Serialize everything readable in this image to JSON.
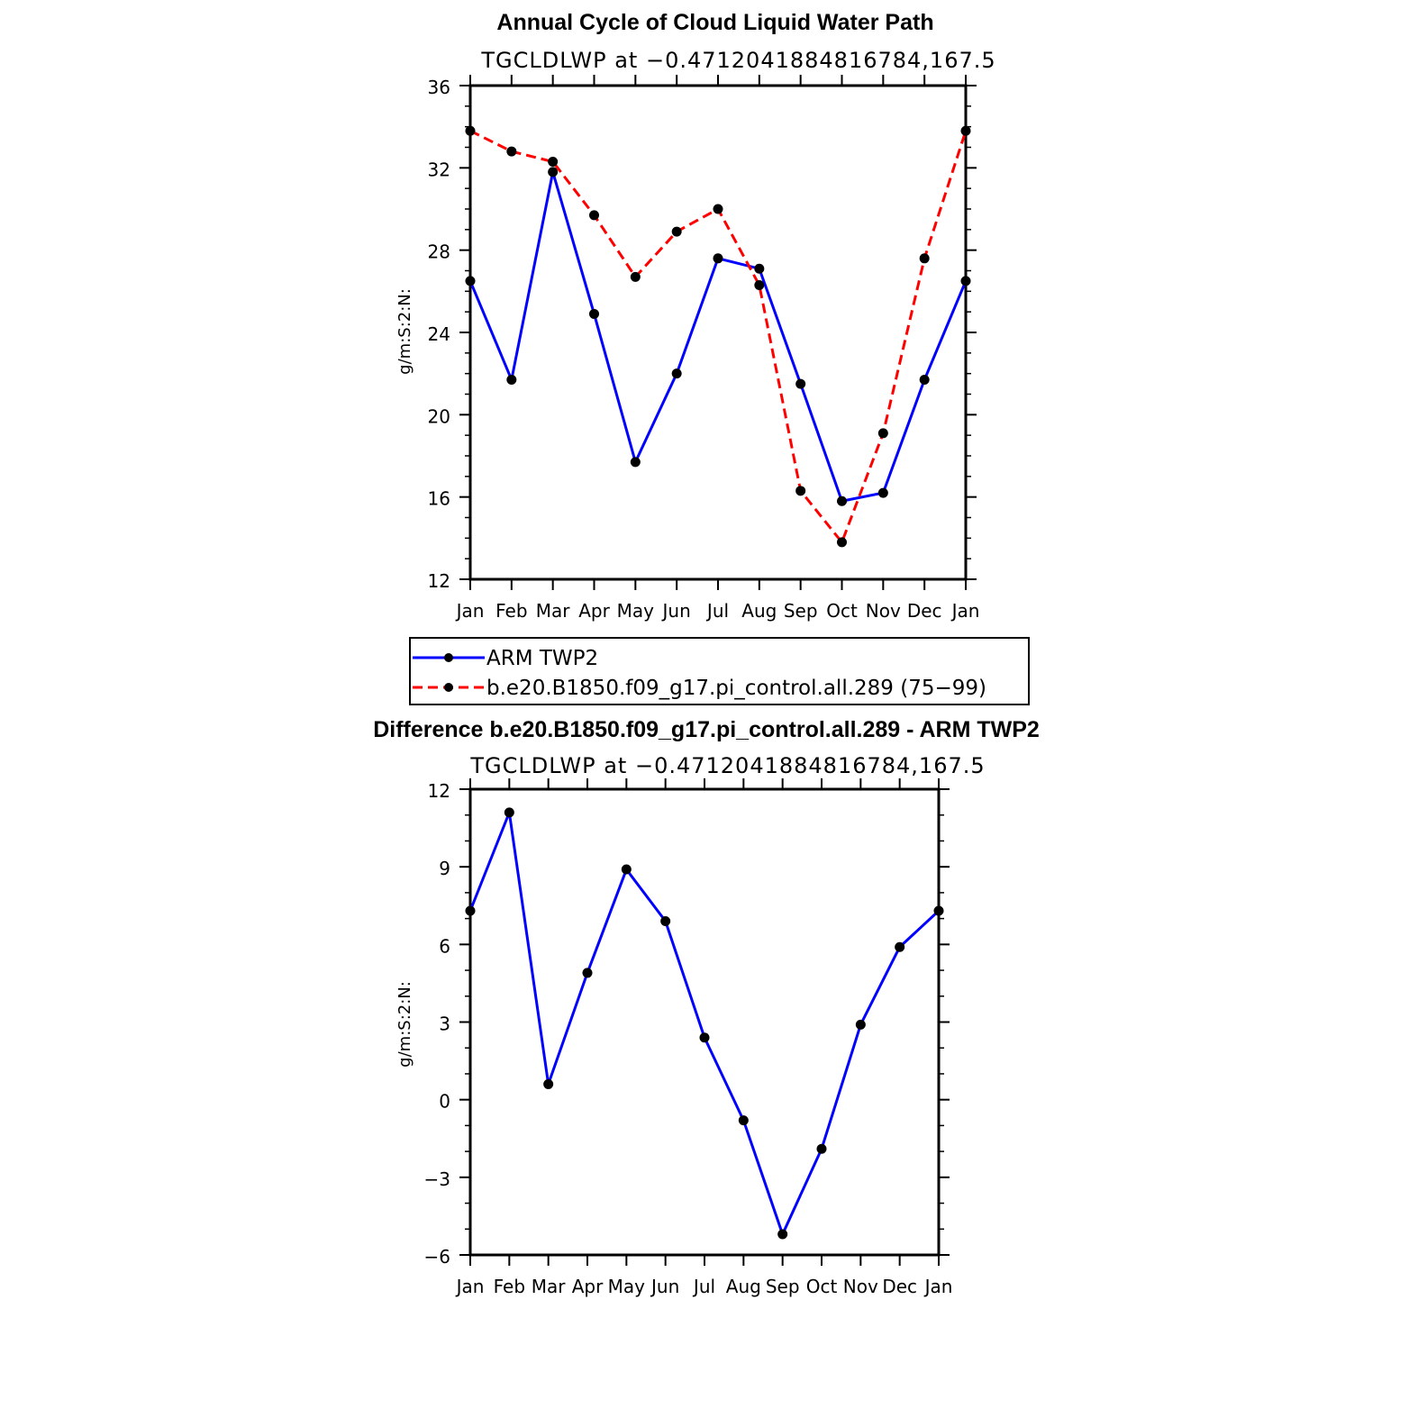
{
  "chart_data": [
    {
      "type": "line",
      "title": "Annual Cycle of Cloud Liquid Water Path",
      "subtitle": "TGCLDLWP at −0.4712041884816784,167.5",
      "ylabel": "g/m:S:2:N:",
      "xlabel": "",
      "categories": [
        "Jan",
        "Feb",
        "Mar",
        "Apr",
        "May",
        "Jun",
        "Jul",
        "Aug",
        "Sep",
        "Oct",
        "Nov",
        "Dec",
        "Jan"
      ],
      "ylim": [
        12,
        36
      ],
      "yticks": [
        "36",
        "32",
        "28",
        "24",
        "20",
        "16",
        "12"
      ],
      "ytick_values": [
        36,
        32,
        28,
        24,
        20,
        16,
        12
      ],
      "series": [
        {
          "name": "ARM TWP2",
          "color": "#0000ff",
          "dash": "solid",
          "values": [
            26.5,
            21.7,
            31.8,
            24.9,
            17.7,
            22.0,
            27.6,
            27.1,
            21.5,
            15.8,
            16.2,
            21.7,
            26.5
          ]
        },
        {
          "name": "b.e20.B1850.f09_g17.pi_control.all.289 (75−99)",
          "color": "#ff0000",
          "dash": "dashed",
          "values": [
            33.8,
            32.8,
            32.3,
            29.7,
            26.7,
            28.9,
            30.0,
            26.3,
            16.3,
            13.8,
            19.1,
            27.6,
            33.8
          ]
        }
      ]
    },
    {
      "type": "line",
      "title": "Difference b.e20.B1850.f09_g17.pi_control.all.289 - ARM TWP2",
      "subtitle": "TGCLDLWP at −0.4712041884816784,167.5",
      "ylabel": "g/m:S:2:N:",
      "xlabel": "",
      "categories": [
        "Jan",
        "Feb",
        "Mar",
        "Apr",
        "May",
        "Jun",
        "Jul",
        "Aug",
        "Sep",
        "Oct",
        "Nov",
        "Dec",
        "Jan"
      ],
      "ylim": [
        -6,
        12
      ],
      "yticks": [
        "12",
        "9",
        "6",
        "3",
        "0",
        "−3",
        "−6"
      ],
      "ytick_values": [
        12,
        9,
        6,
        3,
        0,
        -3,
        -6
      ],
      "series": [
        {
          "name": "Difference",
          "color": "#0000ff",
          "dash": "solid",
          "values": [
            7.3,
            11.1,
            0.6,
            4.9,
            8.9,
            6.9,
            2.4,
            -0.8,
            -5.2,
            -1.9,
            2.9,
            5.9,
            7.3
          ]
        }
      ]
    }
  ]
}
